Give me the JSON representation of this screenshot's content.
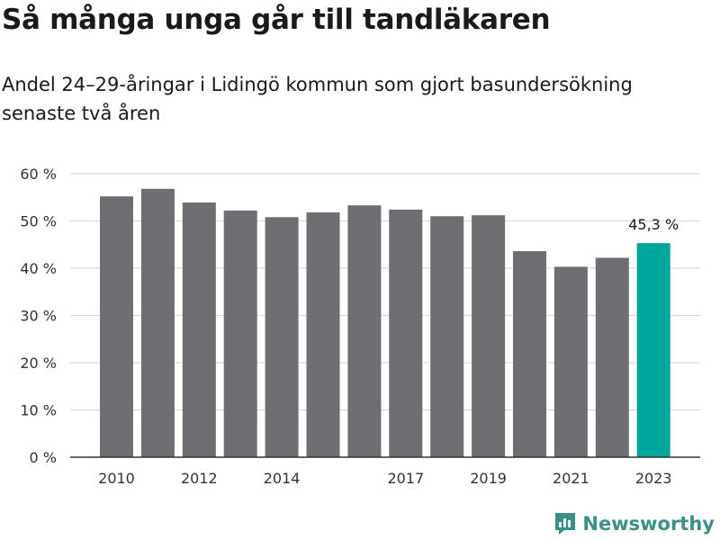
{
  "title": "Så många unga går till tandläkaren",
  "subtitle": "Andel 24–29-åringar i Lidingö kommun som gjort basundersökning senaste två åren",
  "brand": "Newsworthy",
  "colors": {
    "bar": "#6d6d72",
    "highlight": "#00a59a",
    "grid": "#d9d9d9",
    "axis": "#333333"
  },
  "chart_data": {
    "type": "bar",
    "years": [
      2010,
      2011,
      2012,
      2013,
      2014,
      2015,
      2016,
      2017,
      2018,
      2019,
      2020,
      2021,
      2022,
      2023
    ],
    "values": [
      55.2,
      56.8,
      53.9,
      52.2,
      50.8,
      51.8,
      53.3,
      52.4,
      51.0,
      51.2,
      43.6,
      40.3,
      42.2,
      45.3
    ],
    "x_tick_labels": [
      "2010",
      "2012",
      "2014",
      "2017",
      "2019",
      "2021",
      "2023"
    ],
    "y_ticks": [
      0,
      10,
      20,
      30,
      40,
      50,
      60
    ],
    "y_tick_labels": [
      "0 %",
      "10 %",
      "20 %",
      "30 %",
      "40 %",
      "50 %",
      "60 %"
    ],
    "ylim": [
      0,
      60
    ],
    "highlight_year": 2023,
    "highlight_label": "45,3 %",
    "grid": true,
    "xlabel": "",
    "ylabel": ""
  }
}
